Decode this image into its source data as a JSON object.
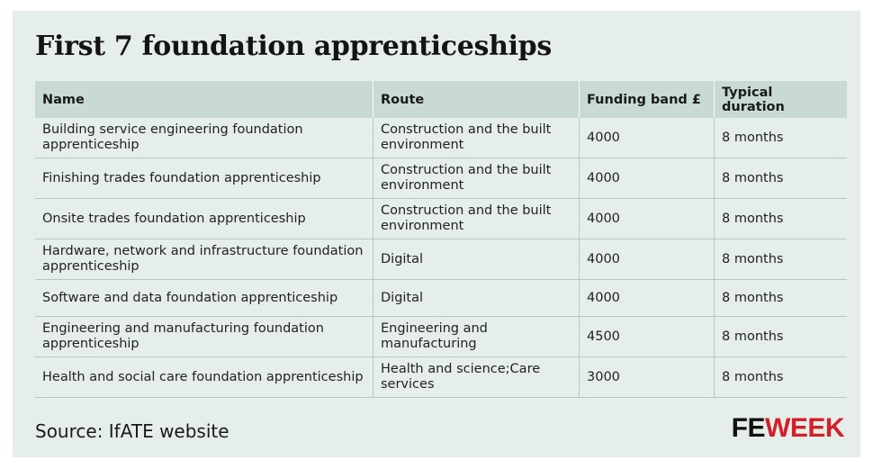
{
  "title": "First 7 foundation apprenticeships",
  "table": {
    "headers": [
      "Name",
      "Route",
      "Funding band £",
      "Typical duration"
    ],
    "rows": [
      [
        "Building service engineering foundation apprenticeship",
        "Construction and the built environment",
        "4000",
        "8 months"
      ],
      [
        "Finishing trades foundation apprenticeship",
        "Construction and the built environment",
        "4000",
        "8 months"
      ],
      [
        "Onsite trades foundation apprenticeship",
        "Construction and the built environment",
        "4000",
        "8 months"
      ],
      [
        "Hardware, network and infrastructure foundation apprenticeship",
        "Digital",
        "4000",
        "8 months"
      ],
      [
        "Software and data foundation apprenticeship",
        "Digital",
        "4000",
        "8 months"
      ],
      [
        "Engineering and manufacturing foundation apprenticeship",
        "Engineering and manufacturing",
        "4500",
        "8 months"
      ],
      [
        "Health and social care foundation apprenticeship",
        "Health and science;Care services",
        "3000",
        "8 months"
      ]
    ]
  },
  "source": "Source: IfATE website",
  "logo": {
    "fe": "FE",
    "week": "WEEK"
  },
  "colors": {
    "background": "#e6eee9",
    "header": "#c9dad3",
    "logo_red": "#d21f2a"
  }
}
